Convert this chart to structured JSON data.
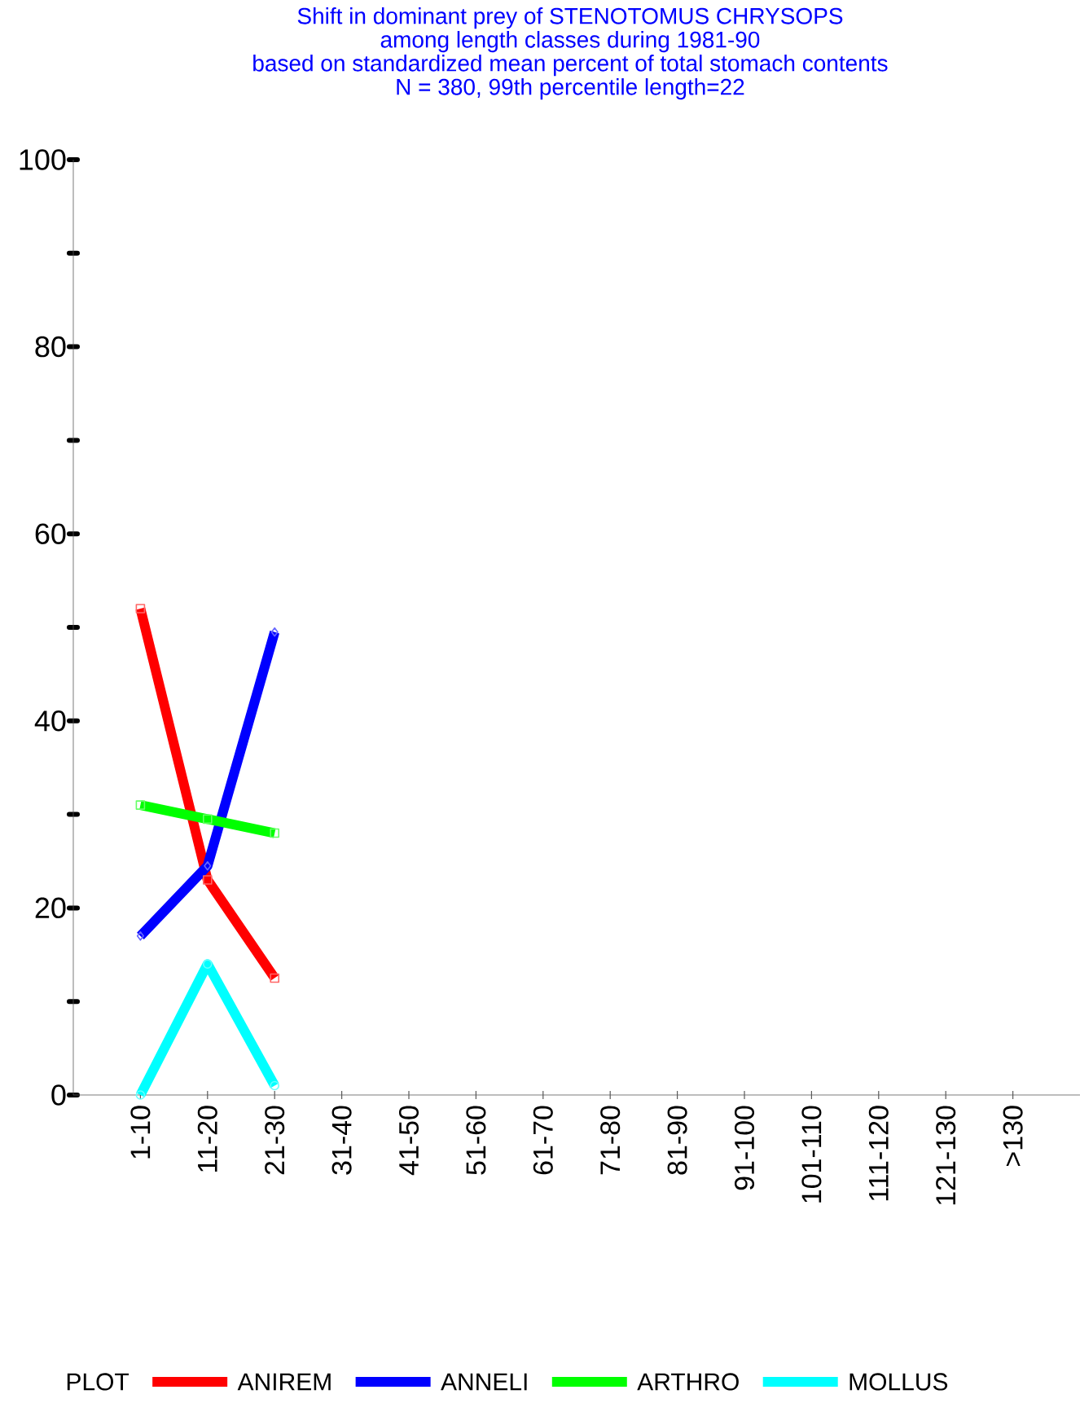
{
  "chart_data": {
    "type": "line",
    "title": "Shift in dominant prey of STENOTOMUS CHRYSOPS",
    "subtitle": "among length classes during 1981-90",
    "annotations": [
      "based on standardized mean percent of  total stomach contents",
      "N = 380, 99th percentile  length=22"
    ],
    "categories": [
      "1-10",
      "11-20",
      "21-30",
      "31-40",
      "41-50",
      "51-60",
      "61-70",
      "71-80",
      "81-90",
      "91-100",
      "101-110",
      "111-120",
      "121-130",
      ">130"
    ],
    "ylim": [
      0,
      100
    ],
    "yticks": [
      0,
      {
        "value": 10,
        "label": null
      },
      20,
      {
        "value": 30,
        "label": null
      },
      40,
      {
        "value": 50,
        "label": null
      },
      60,
      {
        "value": 70,
        "label": null
      },
      80,
      {
        "value": 90,
        "label": null
      },
      100
    ],
    "legend": "bottom",
    "legend_title": "PLOT",
    "grid": false,
    "series": [
      {
        "name": "ANIREM",
        "color": "#ff0000",
        "marker": "square",
        "values": [
          52,
          23,
          12.5,
          null,
          null,
          null,
          null,
          null,
          null,
          null,
          null,
          null,
          null,
          null
        ]
      },
      {
        "name": "ANNELI",
        "color": "#0000ff",
        "marker": "diamond",
        "values": [
          17,
          24.5,
          49.5,
          null,
          null,
          null,
          null,
          null,
          null,
          null,
          null,
          null,
          null,
          null
        ]
      },
      {
        "name": "ARTHRO",
        "color": "#00ff00",
        "marker": "square",
        "values": [
          31,
          29.5,
          28,
          null,
          null,
          null,
          null,
          null,
          null,
          null,
          null,
          null,
          null,
          null
        ]
      },
      {
        "name": "MOLLUS",
        "color": "#00ffff",
        "marker": "circle",
        "values": [
          0,
          14,
          1,
          null,
          null,
          null,
          null,
          null,
          null,
          null,
          null,
          null,
          null,
          null
        ]
      }
    ]
  }
}
